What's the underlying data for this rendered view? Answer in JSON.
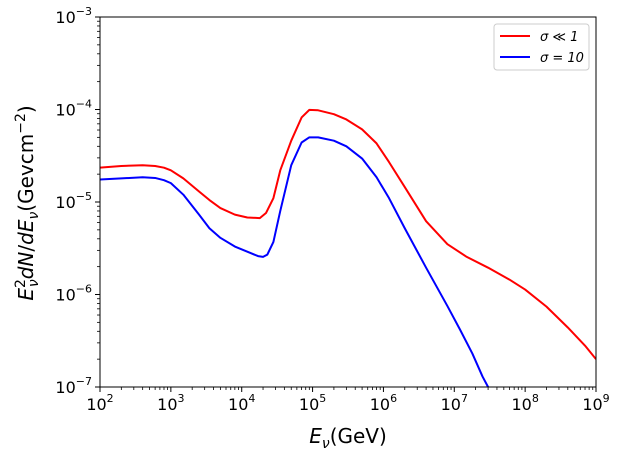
{
  "chart_data": {
    "type": "line",
    "title": "",
    "xlabel": "E_ν(GeV)",
    "ylabel": "E_ν^2 dN/dE_ν(Gevcm^-2)",
    "xscale": "log",
    "yscale": "log",
    "xlim": [
      100,
      1000000000
    ],
    "ylim": [
      1e-07,
      0.001
    ],
    "x_ticks": [
      {
        "base": "10",
        "exp": "2",
        "value": 100
      },
      {
        "base": "10",
        "exp": "3",
        "value": 1000
      },
      {
        "base": "10",
        "exp": "4",
        "value": 10000
      },
      {
        "base": "10",
        "exp": "5",
        "value": 100000
      },
      {
        "base": "10",
        "exp": "6",
        "value": 1000000
      },
      {
        "base": "10",
        "exp": "7",
        "value": 10000000
      },
      {
        "base": "10",
        "exp": "8",
        "value": 100000000
      },
      {
        "base": "10",
        "exp": "9",
        "value": 1000000000
      }
    ],
    "y_ticks": [
      {
        "base": "10",
        "exp": "−7",
        "value": 1e-07
      },
      {
        "base": "10",
        "exp": "−6",
        "value": 1e-06
      },
      {
        "base": "10",
        "exp": "−5",
        "value": 1e-05
      },
      {
        "base": "10",
        "exp": "−4",
        "value": 0.0001
      },
      {
        "base": "10",
        "exp": "−3",
        "value": 0.001
      }
    ],
    "legend_position": "top-right",
    "series": [
      {
        "name": "σ ≪ 1",
        "color": "#ff0000",
        "x": [
          100,
          200,
          400,
          600,
          800,
          1000,
          1500,
          2500,
          3500,
          5000,
          8000,
          12000,
          18000,
          22000,
          28000,
          35000,
          50000,
          70000,
          90000,
          120000,
          200000,
          300000,
          500000,
          800000,
          1200000,
          2000000,
          4000000,
          8000000,
          15000000,
          30000000,
          60000000,
          100000000,
          200000000,
          400000000,
          700000000,
          1000000000
        ],
        "values": [
          2.35e-05,
          2.45e-05,
          2.5e-05,
          2.45e-05,
          2.35e-05,
          2.2e-05,
          1.8e-05,
          1.3e-05,
          1.05e-05,
          8.6e-06,
          7.3e-06,
          6.8e-06,
          6.7e-06,
          7.6e-06,
          1.1e-05,
          2.2e-05,
          4.6e-05,
          8.2e-05,
          9.9e-05,
          9.8e-05,
          8.9e-05,
          7.8e-05,
          6.1e-05,
          4.3e-05,
          2.7e-05,
          1.45e-05,
          6.2e-06,
          3.5e-06,
          2.55e-06,
          1.95e-06,
          1.45e-06,
          1.13e-06,
          7.4e-07,
          4.4e-07,
          2.8e-07,
          2e-07
        ]
      },
      {
        "name": "σ = 10",
        "color": "#0000ff",
        "x": [
          100,
          200,
          400,
          600,
          800,
          1000,
          1500,
          2500,
          3500,
          5000,
          8000,
          12000,
          17000,
          20000,
          23000,
          28000,
          35000,
          50000,
          70000,
          90000,
          120000,
          200000,
          300000,
          500000,
          800000,
          1200000,
          2000000,
          4000000,
          8000000,
          12000000,
          18000000,
          25000000,
          30000000
        ],
        "values": [
          1.75e-05,
          1.8e-05,
          1.85e-05,
          1.82e-05,
          1.72e-05,
          1.6e-05,
          1.2e-05,
          7.3e-06,
          5.2e-06,
          4.1e-06,
          3.3e-06,
          2.9e-06,
          2.6e-06,
          2.55e-06,
          2.7e-06,
          3.7e-06,
          8e-06,
          2.5e-05,
          4.4e-05,
          5e-05,
          5e-05,
          4.6e-05,
          4e-05,
          2.95e-05,
          1.85e-05,
          1.1e-05,
          5.2e-06,
          1.95e-06,
          7.5e-07,
          4.2e-07,
          2.3e-07,
          1.3e-07,
          1e-07
        ]
      }
    ]
  }
}
